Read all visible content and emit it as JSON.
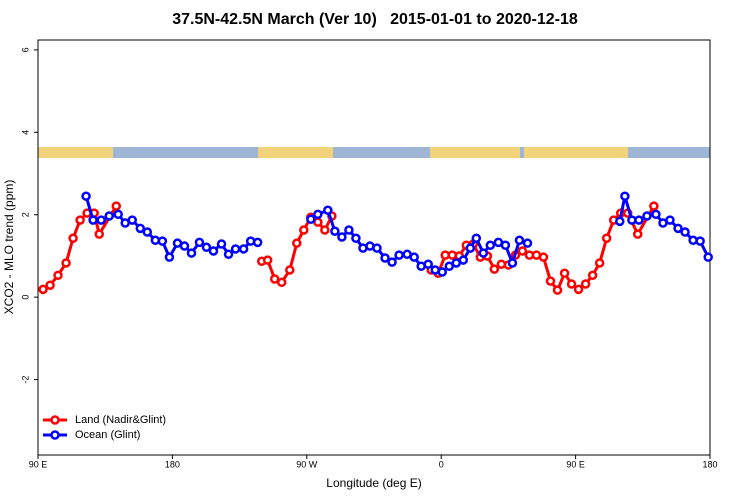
{
  "chart_data": {
    "type": "line",
    "title": "37.5N-42.5N March (Ver 10)   2015-01-01 to 2020-12-18",
    "x_label": "Longitude (deg E)",
    "y_label": "XCO2 - MLO trend (ppm)",
    "xlim": [
      90,
      540
    ],
    "xticks": [
      {
        "value": 90,
        "label": "90 E"
      },
      180,
      {
        "value": 270,
        "label": "90 W"
      },
      {
        "value": 360,
        "label": "0"
      },
      {
        "value": 450,
        "label": "90 E"
      },
      {
        "value": 540,
        "label": "180"
      }
    ],
    "ylim": [
      -3.83,
      6.24
    ],
    "yticks": [
      6,
      4,
      2,
      0,
      -2
    ],
    "legend": "bottom-left",
    "series": [
      {
        "name": "Land (Nadir&Glint)",
        "color": "#ff0000",
        "x": [
          93.4,
          98.1,
          103.4,
          108.8,
          113.5,
          118.2,
          122.9,
          127.6,
          131,
          142.4,
          null,
          239.8,
          243.8,
          248.5,
          253.2,
          258.6,
          263.3,
          268,
          272.7,
          277.4,
          282.1,
          286.8,
          null,
          353.3,
          358,
          362.7,
          367.4,
          372.1,
          376.8,
          381.5,
          386.2,
          390.9,
          395.6,
          400.3,
          405,
          409.7,
          414.4,
          419.1,
          423.8,
          428.5,
          433.2,
          437.9,
          442.6,
          447.3,
          452,
          456.7,
          461.4,
          466.1,
          470.8,
          475.5,
          480.2,
          484.9,
          491.6,
          502.4
        ],
        "values": [
          0.19,
          0.29,
          0.53,
          0.83,
          1.43,
          1.87,
          2.04,
          2.04,
          1.53,
          2.21,
          null,
          0.87,
          0.9,
          0.44,
          0.36,
          0.66,
          1.31,
          1.63,
          1.94,
          1.82,
          1.63,
          1.97,
          null,
          0.66,
          0.58,
          1.02,
          1.02,
          1.0,
          1.26,
          1.29,
          0.97,
          1.0,
          0.68,
          0.8,
          0.78,
          1.02,
          1.12,
          1.02,
          1.02,
          0.97,
          0.39,
          0.17,
          0.58,
          0.32,
          0.19,
          0.32,
          0.53,
          0.83,
          1.43,
          1.87,
          2.04,
          2.04,
          1.53,
          2.21
        ]
      },
      {
        "name": "Ocean (Glint)",
        "color": "#0000ff",
        "x": [
          122.2,
          126.9,
          132.3,
          137.7,
          143.7,
          148.4,
          153.1,
          158.5,
          163.2,
          168.6,
          173.3,
          178,
          183.4,
          188.1,
          192.8,
          198.1,
          202.8,
          207.5,
          212.9,
          217.6,
          222.3,
          227.7,
          232.4,
          237.1,
          null,
          272.7,
          277.4,
          284.1,
          288.8,
          293.5,
          298.2,
          302.9,
          307.6,
          312.3,
          317,
          322.4,
          327.1,
          331.8,
          337.2,
          341.9,
          346.6,
          351.3,
          356,
          360.7,
          365.4,
          370.1,
          374.8,
          379.5,
          383.5,
          388.2,
          392.9,
          398.3,
          403,
          407.7,
          412.4,
          417.8,
          null,
          479.6,
          483,
          487.7,
          492.4,
          497.8,
          503.8,
          508.5,
          513.2,
          518.6,
          523.3,
          528.7,
          533.4,
          538.8
        ],
        "values": [
          2.45,
          1.87,
          1.87,
          1.97,
          2.01,
          1.8,
          1.87,
          1.67,
          1.58,
          1.38,
          1.36,
          0.97,
          1.31,
          1.24,
          1.07,
          1.33,
          1.21,
          1.12,
          1.29,
          1.04,
          1.17,
          1.17,
          1.36,
          1.33,
          null,
          1.89,
          2.01,
          2.11,
          1.6,
          1.46,
          1.63,
          1.43,
          1.19,
          1.24,
          1.19,
          0.95,
          0.85,
          1.02,
          1.04,
          0.97,
          0.75,
          0.8,
          0.66,
          0.61,
          0.75,
          0.83,
          0.9,
          1.19,
          1.43,
          1.07,
          1.26,
          1.33,
          1.26,
          0.83,
          1.38,
          1.31,
          null,
          1.84,
          2.45,
          1.87,
          1.87,
          1.97,
          2.01,
          1.8,
          1.87,
          1.67,
          1.58,
          1.38,
          1.36,
          0.97
        ]
      }
    ]
  }
}
